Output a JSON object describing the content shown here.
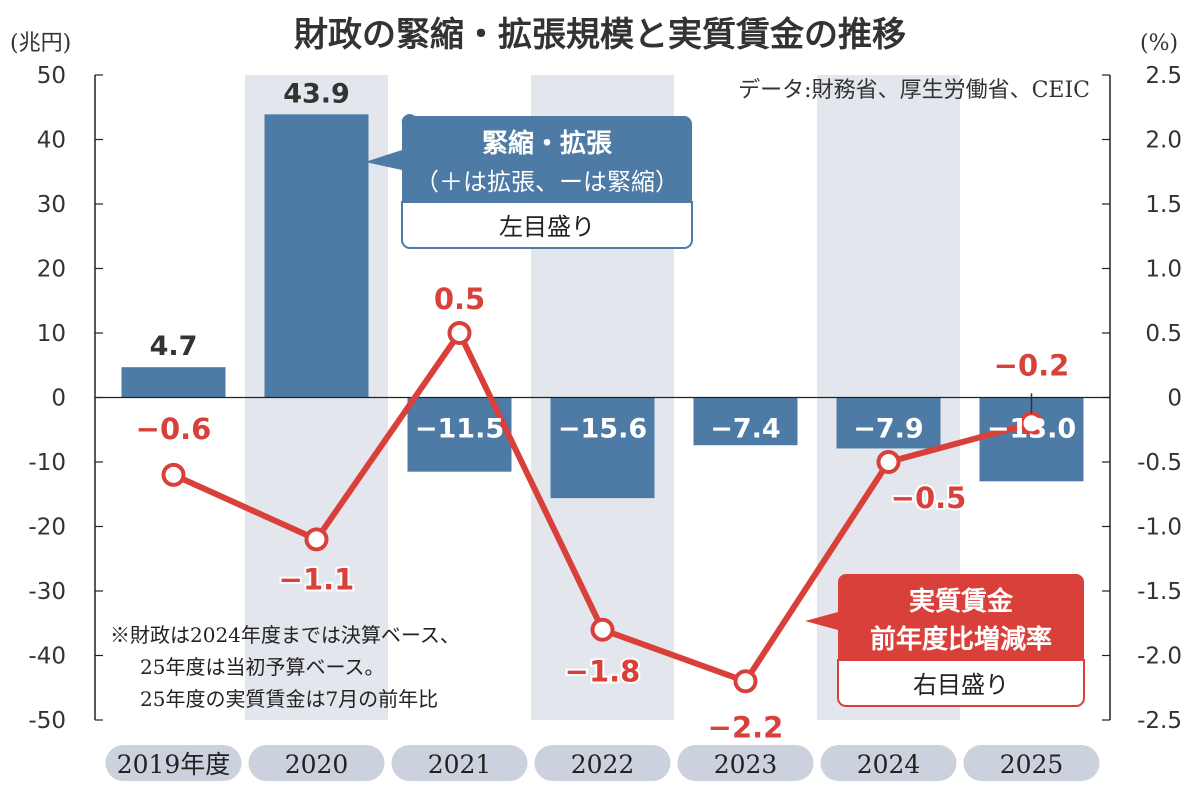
{
  "chart_data": {
    "type": "bar+line",
    "title": "財政の緊縮・拡張規模と実質賃金の推移",
    "source": "データ:財務省、厚生労働省、CEIC",
    "left_axis_unit": "(兆円)",
    "right_axis_unit": "(%)",
    "categories": [
      "2019年度",
      "2020",
      "2021",
      "2022",
      "2023",
      "2024",
      "2025"
    ],
    "shaded_categories": [
      1,
      3,
      5
    ],
    "left_ylim": [
      -50,
      50
    ],
    "left_ticks": [
      50,
      40,
      30,
      20,
      10,
      0,
      -10,
      -20,
      -30,
      -40,
      -50
    ],
    "right_ylim": [
      -2.5,
      2.5
    ],
    "right_ticks": [
      "2.5",
      "2.0",
      "1.5",
      "1.0",
      "0.5",
      "0",
      "-0.5",
      "-1.0",
      "-1.5",
      "-2.0",
      "-2.5"
    ],
    "series": [
      {
        "name": "緊縮・拡張",
        "type": "bar",
        "axis": "left",
        "values": [
          4.7,
          43.9,
          -11.5,
          -15.6,
          -7.4,
          -7.9,
          -13.0
        ],
        "labels": [
          "4.7",
          "43.9",
          "−11.5",
          "−15.6",
          "−7.4",
          "−7.9",
          "−13.0"
        ],
        "color": "#4d7ba5"
      },
      {
        "name": "実質賃金 前年度比増減率",
        "type": "line",
        "axis": "right",
        "values": [
          -0.6,
          -1.1,
          0.5,
          -1.8,
          -2.2,
          -0.5,
          -0.2
        ],
        "labels": [
          "−0.6",
          "−1.1",
          "0.5",
          "−1.8",
          "−2.2",
          "−0.5",
          "−0.2"
        ],
        "color": "#d9403a"
      }
    ],
    "legend_bar": {
      "line1": "緊縮・拡張",
      "line2": "（＋は拡張、ーは緊縮）",
      "axis_note": "左目盛り"
    },
    "legend_line": {
      "line1": "実質賃金",
      "line2": "前年度比増減率",
      "axis_note": "右目盛り"
    },
    "footnote": [
      "※財政は2024年度までは決算ベース、",
      "25年度は当初予算ベース。",
      "25年度の実質賃金は7月の前年比"
    ]
  }
}
